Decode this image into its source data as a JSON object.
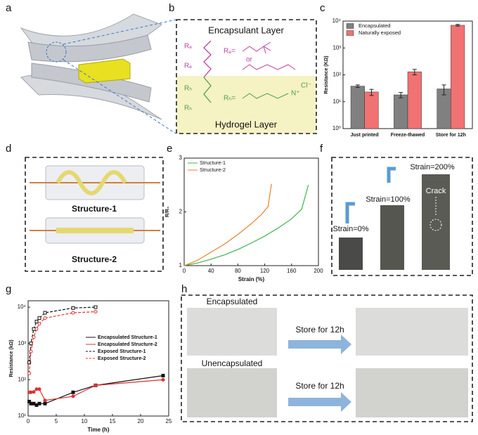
{
  "panel_labels": [
    "a",
    "b",
    "c",
    "d",
    "e",
    "f",
    "g",
    "h"
  ],
  "panel_b": {
    "top_layer": "Encapsulant Layer",
    "bottom_layer": "Hydrogel Layer",
    "backbone_labels": [
      "Rₑ",
      "Rₑ",
      "Rₕ",
      "Rₕ"
    ],
    "re_def": "Rₑ=",
    "rh_def": "Rₕ=",
    "or": "or",
    "cation": "N⁺",
    "anion": "Cl⁻"
  },
  "panel_d": {
    "structures": [
      "Structure-1",
      "Structure-2"
    ]
  },
  "panel_f": {
    "strains": [
      "Strain=0%",
      "Strain=100%",
      "Strain=200%"
    ],
    "crack": "Crack"
  },
  "panel_h": {
    "rows": [
      "Encapsulated",
      "Unencapsulated"
    ],
    "arrows": [
      "Store for 12h",
      "Store for 12h"
    ]
  },
  "chart_data": [
    {
      "type": "bar",
      "categories": [
        "Just printed",
        "Freeze-thawed",
        "Store for 12h"
      ],
      "series": [
        {
          "name": "Encapsulated",
          "color": "#808080",
          "values": [
            38,
            18,
            30
          ],
          "errors": [
            4,
            4,
            12
          ]
        },
        {
          "name": "Naturally exposed",
          "color": "#f07272",
          "values": [
            23,
            130,
            7000
          ],
          "errors": [
            6,
            30,
            500
          ]
        }
      ],
      "log_y": true,
      "ylim": [
        1,
        10000
      ],
      "yticks": [
        {
          "value": 1,
          "label": "10⁰"
        },
        {
          "value": 10,
          "label": "10¹"
        },
        {
          "value": 100,
          "label": "10²"
        },
        {
          "value": 1000,
          "label": "10³"
        },
        {
          "value": 10000,
          "label": "10⁴"
        }
      ],
      "ylabel": "Resistance (KΩ)",
      "legend": "upper left"
    },
    {
      "type": "line",
      "xlim": [
        0,
        200
      ],
      "xticks": [
        0,
        40,
        80,
        120,
        160,
        200
      ],
      "ylim": [
        1,
        3
      ],
      "yticks": [
        1,
        2,
        3
      ],
      "xlabel": "Strain (%)",
      "ylabel": "R/R₀",
      "legend": "upper left",
      "series": [
        {
          "name": "Structure-1",
          "color": "#3cb44b",
          "x": [
            0,
            20,
            40,
            60,
            80,
            100,
            120,
            140,
            160,
            175,
            185
          ],
          "values": [
            1,
            1.05,
            1.12,
            1.2,
            1.3,
            1.42,
            1.55,
            1.7,
            1.87,
            2.05,
            2.5
          ]
        },
        {
          "name": "Structure-2",
          "color": "#e8822a",
          "x": [
            0,
            20,
            40,
            60,
            80,
            100,
            115,
            125,
            130
          ],
          "values": [
            1,
            1.1,
            1.25,
            1.4,
            1.58,
            1.78,
            1.95,
            2.1,
            2.52
          ]
        }
      ]
    },
    {
      "type": "line",
      "xlim": [
        0,
        25
      ],
      "xticks": [
        0,
        5,
        10,
        15,
        20,
        25
      ],
      "log_y": true,
      "ylim": [
        10,
        15000
      ],
      "yticks": [
        {
          "value": 10,
          "label": "10¹"
        },
        {
          "value": 100,
          "label": "10²"
        },
        {
          "value": 1000,
          "label": "10³"
        },
        {
          "value": 10000,
          "label": "10⁴"
        }
      ],
      "xlabel": "Time (h)",
      "ylabel": "Resistance (kΩ)",
      "legend": "center right",
      "series": [
        {
          "name": "Encapsulated Structure-1",
          "color": "#111111",
          "marker": "square",
          "filled": true,
          "dashed": false,
          "x": [
            0.2,
            0.5,
            1,
            1.5,
            2,
            3,
            8,
            12,
            24
          ],
          "values": [
            25,
            22,
            22,
            20,
            22,
            22,
            45,
            70,
            130
          ]
        },
        {
          "name": "Encapsulated Structure-2",
          "color": "#e03030",
          "marker": "circle",
          "filled": true,
          "dashed": false,
          "x": [
            0.2,
            0.5,
            1,
            1.5,
            2,
            3,
            8,
            12,
            24
          ],
          "values": [
            45,
            45,
            46,
            55,
            55,
            27,
            35,
            70,
            100
          ]
        },
        {
          "name": "Exposed Structure-1",
          "color": "#111111",
          "marker": "square",
          "filled": false,
          "dashed": true,
          "x": [
            0.2,
            0.5,
            1,
            1.5,
            2,
            3,
            8,
            12
          ],
          "values": [
            300,
            1000,
            2500,
            4000,
            5000,
            7000,
            9500,
            10000
          ]
        },
        {
          "name": "Exposed Structure-2",
          "color": "#e03030",
          "marker": "circle",
          "filled": false,
          "dashed": true,
          "x": [
            0.2,
            0.5,
            1,
            1.5,
            2,
            3,
            8,
            12
          ],
          "values": [
            150,
            600,
            1500,
            2500,
            3500,
            5000,
            7000,
            7500
          ]
        }
      ]
    }
  ]
}
